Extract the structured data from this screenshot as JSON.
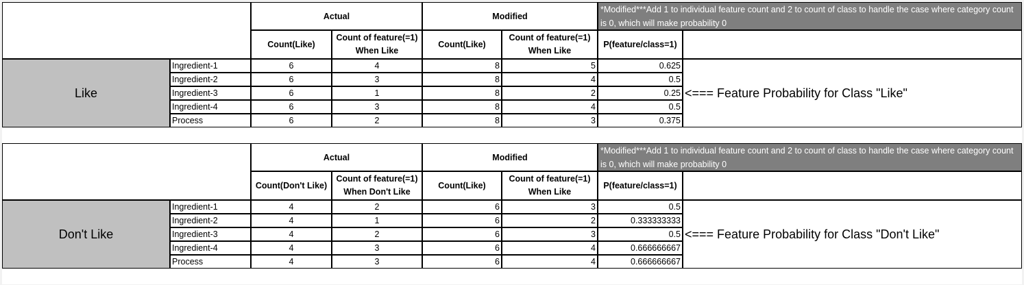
{
  "tables": [
    {
      "headers": {
        "actual": "Actual",
        "modified": "Modified",
        "note": "*Modified***Add 1 to individual feature count and 2 to count of class to handle the case where category count is 0, which will make probability 0",
        "col1": "Count(Like)",
        "col2a": "Count of feature(=1)",
        "col2b": "When Like",
        "col3": "Count(Like)",
        "col4a": "Count of feature(=1)",
        "col4b": "When Like",
        "col5": "P(feature/class=1)"
      },
      "class_label": "Like",
      "annotation": "<=== Feature Probability for Class \"Like\"",
      "rows": [
        {
          "feature": "Ingredient-1",
          "count": "6",
          "feat": "4",
          "mcount": "8",
          "mfeat": "5",
          "p": "0.625"
        },
        {
          "feature": "Ingredient-2",
          "count": "6",
          "feat": "3",
          "mcount": "8",
          "mfeat": "4",
          "p": "0.5"
        },
        {
          "feature": "Ingredient-3",
          "count": "6",
          "feat": "1",
          "mcount": "8",
          "mfeat": "2",
          "p": "0.25"
        },
        {
          "feature": "Ingredient-4",
          "count": "6",
          "feat": "3",
          "mcount": "8",
          "mfeat": "4",
          "p": "0.5"
        },
        {
          "feature": "Process",
          "count": "6",
          "feat": "2",
          "mcount": "8",
          "mfeat": "3",
          "p": "0.375"
        }
      ]
    },
    {
      "headers": {
        "actual": "Actual",
        "modified": "Modified",
        "note": "*Modified***Add 1 to individual feature count and 2 to count of class to handle the case where category count is 0, which will make probability 0",
        "col1": "Count(Don't Like)",
        "col2a": "Count of feature(=1)",
        "col2b": "When Don't Like",
        "col3": "Count(Like)",
        "col4a": "Count of feature(=1)",
        "col4b": "When Like",
        "col5": "P(feature/class=1)"
      },
      "class_label": "Don't Like",
      "annotation": "<=== Feature Probability for Class \"Don't Like\"",
      "rows": [
        {
          "feature": "Ingredient-1",
          "count": "4",
          "feat": "2",
          "mcount": "6",
          "mfeat": "3",
          "p": "0.5"
        },
        {
          "feature": "Ingredient-2",
          "count": "4",
          "feat": "1",
          "mcount": "6",
          "mfeat": "2",
          "p": "0.333333333"
        },
        {
          "feature": "Ingredient-3",
          "count": "4",
          "feat": "2",
          "mcount": "6",
          "mfeat": "3",
          "p": "0.5"
        },
        {
          "feature": "Ingredient-4",
          "count": "4",
          "feat": "3",
          "mcount": "6",
          "mfeat": "4",
          "p": "0.666666667"
        },
        {
          "feature": "Process",
          "count": "4",
          "feat": "3",
          "mcount": "6",
          "mfeat": "4",
          "p": "0.666666667"
        }
      ]
    }
  ]
}
